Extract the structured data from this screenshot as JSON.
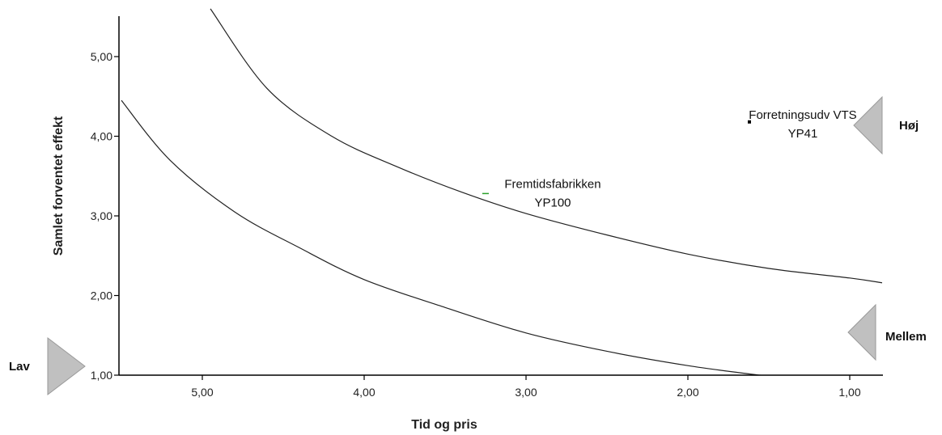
{
  "chart_data": {
    "type": "scatter",
    "xlabel": "Tid og pris",
    "ylabel": "Samlet forventet effekt",
    "x_reversed": true,
    "xlim": [
      0.8,
      5.5
    ],
    "ylim": [
      1.0,
      5.5
    ],
    "x_ticks": [
      "5,00",
      "4,00",
      "3,00",
      "2,00",
      "1,00"
    ],
    "x_tick_values": [
      5,
      4,
      3,
      2,
      1
    ],
    "y_ticks": [
      "1,00",
      "2,00",
      "3,00",
      "4,00",
      "5,00"
    ],
    "y_tick_values": [
      1,
      2,
      3,
      4,
      5
    ],
    "curves": [
      {
        "points": [
          [
            5.5,
            4.45
          ],
          [
            5.2,
            3.7
          ],
          [
            4.8,
            3.05
          ],
          [
            4.4,
            2.6
          ],
          [
            4.0,
            2.2
          ],
          [
            3.5,
            1.85
          ],
          [
            3.0,
            1.53
          ],
          [
            2.5,
            1.3
          ],
          [
            2.0,
            1.12
          ],
          [
            1.6,
            1.01
          ],
          [
            1.55,
            1.0
          ]
        ]
      },
      {
        "points": [
          [
            4.95,
            5.6
          ],
          [
            4.6,
            4.6
          ],
          [
            4.2,
            4.0
          ],
          [
            3.8,
            3.62
          ],
          [
            3.4,
            3.3
          ],
          [
            3.0,
            3.03
          ],
          [
            2.5,
            2.76
          ],
          [
            2.0,
            2.52
          ],
          [
            1.5,
            2.34
          ],
          [
            1.0,
            2.22
          ],
          [
            0.8,
            2.16
          ]
        ]
      }
    ],
    "points": [
      {
        "label": "Fremtidsfabrikken",
        "sublabel": "YP100",
        "x": 3.25,
        "y": 3.25,
        "color": "#2ca02c"
      },
      {
        "label": "Forretningsudv VTS",
        "sublabel": "YP41",
        "x": 1.62,
        "y": 4.18,
        "color": "#000000"
      }
    ],
    "levels": [
      {
        "label": "Lav",
        "y": 1.1
      },
      {
        "label": "Mellem",
        "y": 1.55
      },
      {
        "label": "Høj",
        "y": 4.15
      }
    ],
    "colors": {
      "axis": "#000000",
      "curve": "#222222",
      "marker_fill": "#c0c0c0",
      "marker_stroke": "#999999"
    }
  }
}
